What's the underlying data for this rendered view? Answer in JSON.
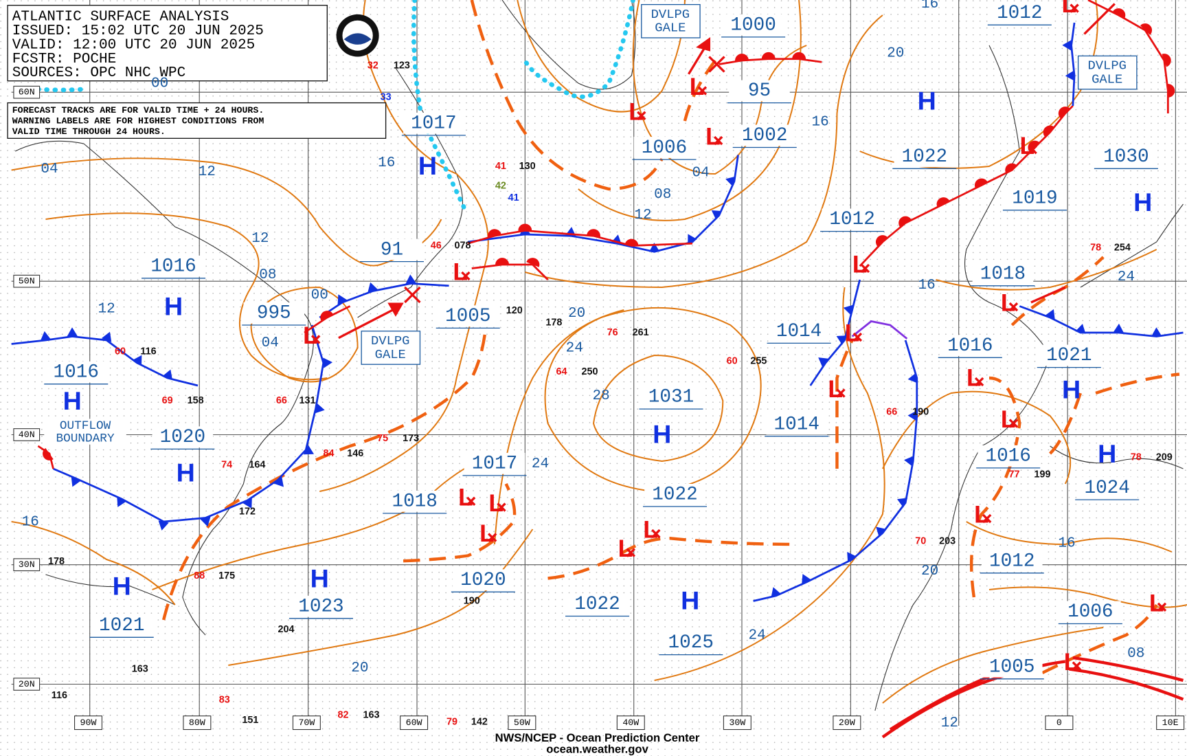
{
  "header": {
    "title": "ATLANTIC SURFACE ANALYSIS",
    "issued": "ISSUED: 15:02 UTC 20 JUN 2025",
    "valid": "VALID:  12:00 UTC 20 JUN 2025",
    "forecaster": "FCSTR:  POCHE",
    "sources": "SOURCES: OPC NHC WPC"
  },
  "note": [
    "FORECAST TRACKS ARE FOR VALID TIME + 24 HOURS.",
    "WARNING LABELS ARE FOR HIGHEST CONDITIONS FROM",
    "VALID TIME THROUGH 24 HOURS."
  ],
  "lat_labels": [
    "60N",
    "50N",
    "40N",
    "30N",
    "20N"
  ],
  "lon_labels": [
    "90W",
    "80W",
    "70W",
    "60W",
    "50W",
    "40W",
    "30W",
    "20W",
    "0",
    "10E"
  ],
  "symbols": {
    "high": "H",
    "low": "L"
  },
  "pressure_labels": [
    "1017",
    "1016",
    "91",
    "995",
    "1005",
    "1016",
    "1020",
    "1018",
    "1017",
    "1020",
    "1023",
    "1021",
    "1022",
    "1025",
    "1022",
    "1031",
    "1014",
    "1014",
    "1006",
    "1002",
    "95",
    "1000",
    "1012",
    "1022",
    "1012",
    "1019",
    "1030",
    "1018",
    "1016",
    "1021",
    "1016",
    "1024",
    "1012",
    "1006",
    "1005"
  ],
  "isobar_labels": [
    "04",
    "12",
    "12",
    "08",
    "12",
    "00",
    "04",
    "16",
    "16",
    "20",
    "16",
    "04",
    "08",
    "12",
    "20",
    "24",
    "28",
    "24",
    "16",
    "24",
    "16",
    "20",
    "24",
    "20",
    "12",
    "08",
    "00",
    "16"
  ],
  "gale_label": [
    "DVLPG",
    "GALE"
  ],
  "outflow_label": [
    "OUTFLOW",
    "BOUNDARY"
  ],
  "stations": [
    "123",
    "32",
    "33",
    "130",
    "41",
    "42",
    "41",
    "078",
    "46",
    "120",
    "178",
    "261",
    "76",
    "250",
    "64",
    "255",
    "60",
    "190",
    "66",
    "254",
    "78",
    "203",
    "70",
    "190",
    "204",
    "163",
    "116",
    "178",
    "173",
    "75",
    "146",
    "84",
    "164",
    "74",
    "172",
    "175",
    "88",
    "158",
    "69",
    "116",
    "60",
    "131",
    "66",
    "199",
    "77",
    "209",
    "78",
    "142",
    "79",
    "163",
    "82",
    "151",
    "83"
  ],
  "footer": [
    "NWS/NCEP - Ocean Prediction Center",
    "ocean.weather.gov"
  ]
}
